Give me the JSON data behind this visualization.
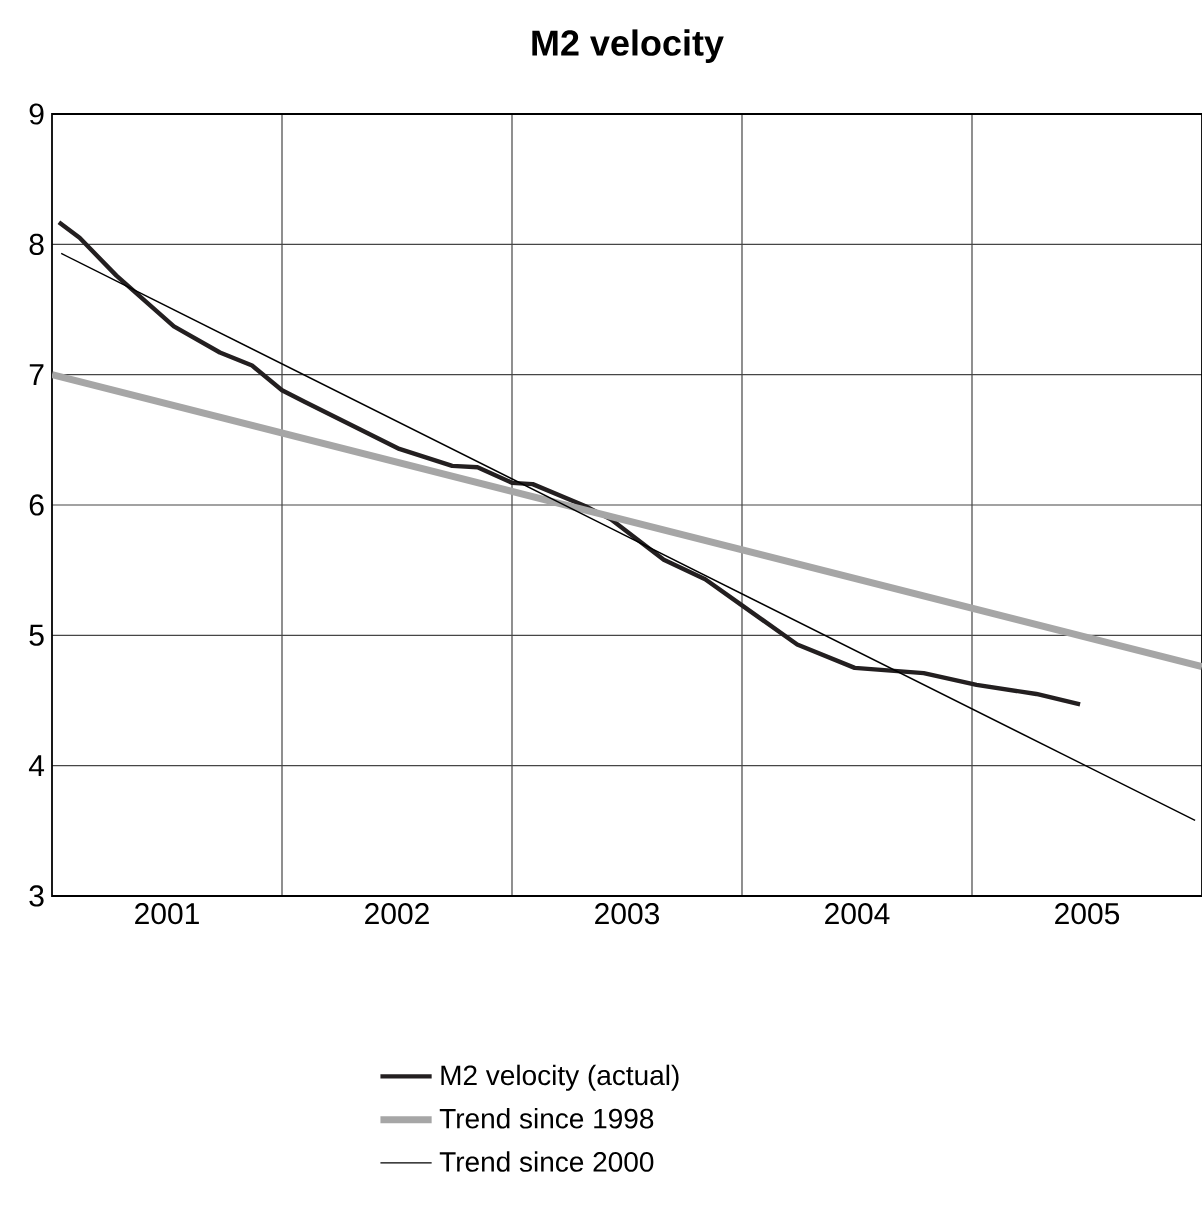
{
  "chart_data": {
    "type": "line",
    "title": "M2 velocity",
    "xlim": [
      2001,
      2006
    ],
    "ylim": [
      3,
      9
    ],
    "xticks": [
      {
        "value": 2001.5,
        "label": "2001"
      },
      {
        "value": 2002,
        "label": null
      },
      {
        "value": 2002.5,
        "label": "2002"
      },
      {
        "value": 2003,
        "label": null
      },
      {
        "value": 2003.5,
        "label": "2003"
      },
      {
        "value": 2004,
        "label": null
      },
      {
        "value": 2004.5,
        "label": "2004"
      },
      {
        "value": 2005,
        "label": null
      },
      {
        "value": 2005.5,
        "label": "2005"
      }
    ],
    "yticks": [
      3,
      4,
      5,
      6,
      7,
      8,
      9
    ],
    "grid": true,
    "legend": "bottom",
    "marker": "none",
    "line_style": "solid",
    "series": [
      {
        "name": "M2 velocity (actual)",
        "color": "#231f20",
        "x": [
          2001.03,
          2001.12,
          2001.28,
          2001.53,
          2001.73,
          2001.87,
          2002.0,
          2002.1,
          2002.34,
          2002.51,
          2002.74,
          2002.85,
          2003.0,
          2003.09,
          2003.32,
          2003.43,
          2003.66,
          2003.84,
          2004.0,
          2004.24,
          2004.49,
          2004.79,
          2005.02,
          2005.28,
          2005.47
        ],
        "values": [
          8.17,
          8.05,
          7.76,
          7.37,
          7.17,
          7.07,
          6.88,
          6.79,
          6.58,
          6.43,
          6.3,
          6.29,
          6.17,
          6.16,
          5.99,
          5.89,
          5.58,
          5.43,
          5.23,
          4.93,
          4.75,
          4.71,
          4.62,
          4.55,
          4.47
        ]
      },
      {
        "name": "Trend since 1998",
        "color": "#a6a6a6",
        "x": [
          2001.0,
          2006.0
        ],
        "values": [
          7.0,
          4.76
        ]
      },
      {
        "name": "Trend since 2000",
        "color": "#000000",
        "x": [
          2001.04,
          2005.97
        ],
        "values": [
          7.93,
          3.58
        ]
      }
    ]
  }
}
